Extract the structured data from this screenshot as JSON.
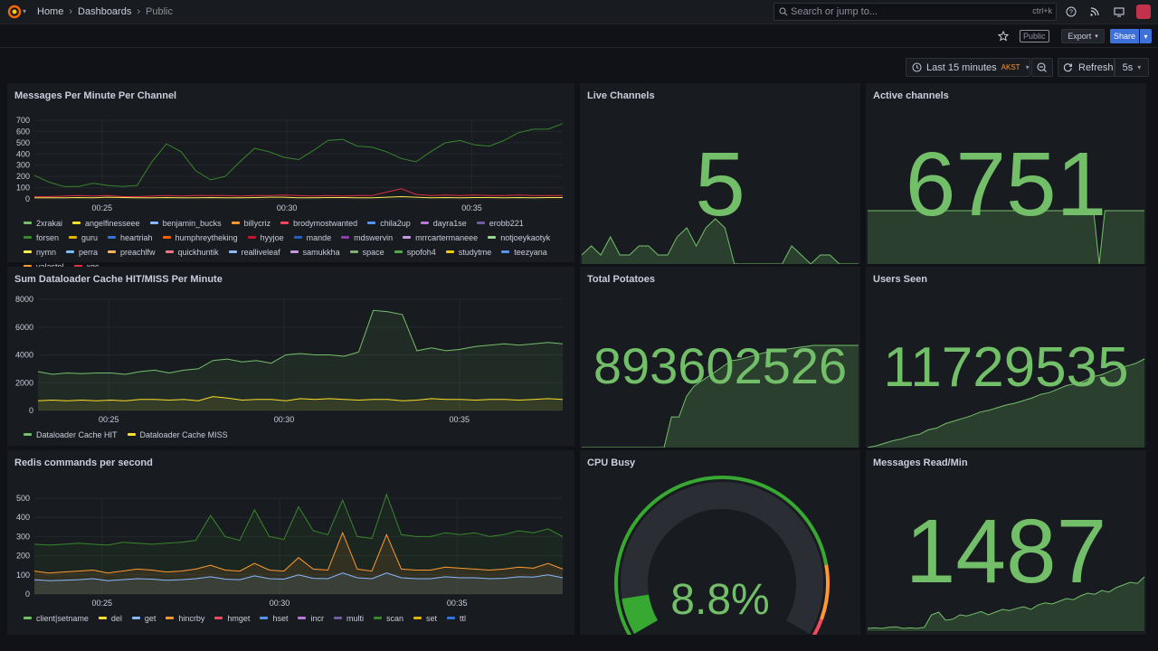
{
  "breadcrumb": {
    "home": "Home",
    "dashboards": "Dashboards",
    "current": "Public",
    "sep": "›"
  },
  "search": {
    "placeholder": "Search or jump to...",
    "shortcut": "ctrl+k"
  },
  "toolbar": {
    "public_badge": "Public",
    "export_label": "Export",
    "share_label": "Share"
  },
  "time": {
    "range_label": "Last 15 minutes",
    "timezone": "AKST",
    "refresh_label": "Refresh",
    "interval": "5s"
  },
  "colors": {
    "green": "#73bf69",
    "yellow": "#fade2a",
    "blue": "#5794f2",
    "orange": "#ff9830",
    "red": "#f2495c",
    "purple": "#b877d9"
  },
  "panels": {
    "messages_per_minute": {
      "title": "Messages Per Minute Per Channel",
      "legend": [
        {
          "name": "2xrakai",
          "color": "#73bf69"
        },
        {
          "name": "angelfinesseee",
          "color": "#fade2a"
        },
        {
          "name": "benjamin_bucks",
          "color": "#8ab8ff"
        },
        {
          "name": "billycriz",
          "color": "#ff9830"
        },
        {
          "name": "brodymostwanted",
          "color": "#f2495c"
        },
        {
          "name": "chila2up",
          "color": "#5794f2"
        },
        {
          "name": "dayra1se",
          "color": "#b877d9"
        },
        {
          "name": "erobb221",
          "color": "#705da0"
        },
        {
          "name": "forsen",
          "color": "#37872d"
        },
        {
          "name": "guru",
          "color": "#e0b400"
        },
        {
          "name": "heartriah",
          "color": "#3274d9"
        },
        {
          "name": "humphreytheking",
          "color": "#fa6400"
        },
        {
          "name": "hyyjoe",
          "color": "#c4162a"
        },
        {
          "name": "mande",
          "color": "#1f60c4"
        },
        {
          "name": "mdswervin",
          "color": "#8f3bb8"
        },
        {
          "name": "mrrcartermaneee",
          "color": "#ca95e5"
        },
        {
          "name": "notjoeykaotyk",
          "color": "#96d98d"
        },
        {
          "name": "nymn",
          "color": "#ffee52"
        },
        {
          "name": "perra",
          "color": "#73bfff"
        },
        {
          "name": "preachlfw",
          "color": "#ffb357"
        },
        {
          "name": "quickhuntik",
          "color": "#ff7383"
        },
        {
          "name": "realliveleaf",
          "color": "#8ab8ff"
        },
        {
          "name": "samukkha",
          "color": "#ca95e5"
        },
        {
          "name": "space",
          "color": "#7eb26d"
        },
        {
          "name": "spofoh4",
          "color": "#56a64b"
        },
        {
          "name": "studytme",
          "color": "#f2cc0c"
        },
        {
          "name": "teezyana",
          "color": "#5794f2"
        },
        {
          "name": "valastol",
          "color": "#ff9830"
        },
        {
          "name": "xqc",
          "color": "#e02f44"
        }
      ]
    },
    "dataloader": {
      "title": "Sum Dataloader Cache HIT/MISS Per Minute",
      "legend": [
        {
          "name": "Dataloader Cache HIT",
          "color": "#73bf69"
        },
        {
          "name": "Dataloader Cache MISS",
          "color": "#fade2a"
        }
      ]
    },
    "redis": {
      "title": "Redis commands per second",
      "legend": [
        {
          "name": "client|setname",
          "color": "#73bf69"
        },
        {
          "name": "del",
          "color": "#fade2a"
        },
        {
          "name": "get",
          "color": "#8ab8ff"
        },
        {
          "name": "hincrby",
          "color": "#ff9830"
        },
        {
          "name": "hmget",
          "color": "#f2495c"
        },
        {
          "name": "hset",
          "color": "#5794f2"
        },
        {
          "name": "incr",
          "color": "#b877d9"
        },
        {
          "name": "multi",
          "color": "#705da0"
        },
        {
          "name": "scan",
          "color": "#37872d"
        },
        {
          "name": "set",
          "color": "#e0b400"
        },
        {
          "name": "ttl",
          "color": "#3274d9"
        }
      ]
    },
    "live_channels": {
      "title": "Live Channels",
      "value": "5",
      "spark": [
        1,
        2,
        1,
        3,
        1,
        1,
        2,
        2,
        1,
        1,
        3,
        4,
        2,
        4,
        5,
        4,
        0,
        0,
        0,
        0,
        0,
        0,
        2,
        1,
        0,
        1,
        1,
        0,
        0,
        0
      ]
    },
    "active_channels": {
      "title": "Active channels",
      "value": "6751",
      "spark": [
        1,
        1,
        1,
        1,
        1,
        1,
        1,
        1,
        1,
        1,
        1,
        1,
        1,
        1,
        1,
        1,
        1,
        1,
        1,
        1,
        1,
        1,
        1,
        1,
        1,
        1,
        1,
        1,
        1,
        1,
        1,
        1,
        1,
        1,
        1,
        1,
        1,
        1,
        1,
        1,
        1,
        0,
        1,
        1,
        1,
        1,
        1,
        1,
        1,
        1
      ]
    },
    "total_potatoes": {
      "title": "Total Potatoes",
      "value": "893602526",
      "spark": [
        0,
        0,
        0,
        0,
        0,
        0,
        0,
        0,
        0,
        0,
        0,
        0,
        0.3,
        0.3,
        0.5,
        0.6,
        0.65,
        0.7,
        0.75,
        0.8,
        0.85,
        0.86,
        0.88,
        0.9,
        0.92,
        0.94,
        0.95,
        0.96,
        0.97,
        0.98,
        0.99,
        1,
        1,
        1,
        1,
        1,
        1,
        1
      ]
    },
    "users_seen": {
      "title": "Users Seen",
      "value": "11729535",
      "spark": [
        0,
        0.02,
        0.05,
        0.08,
        0.1,
        0.13,
        0.15,
        0.2,
        0.22,
        0.27,
        0.3,
        0.33,
        0.36,
        0.4,
        0.42,
        0.45,
        0.48,
        0.5,
        0.53,
        0.56,
        0.6,
        0.62,
        0.66,
        0.7,
        0.72,
        0.75,
        0.8,
        0.82,
        0.86,
        0.9,
        0.92,
        0.95,
        1
      ]
    },
    "cpu_busy": {
      "title": "CPU Busy",
      "value": "8.8%",
      "percent": 8.8
    },
    "messages_read": {
      "title": "Messages Read/Min",
      "value": "1487",
      "spark": [
        0.05,
        0.06,
        0.05,
        0.07,
        0.08,
        0.05,
        0.06,
        0.05,
        0.07,
        0.3,
        0.35,
        0.2,
        0.22,
        0.3,
        0.28,
        0.32,
        0.36,
        0.3,
        0.35,
        0.4,
        0.38,
        0.42,
        0.45,
        0.4,
        0.48,
        0.52,
        0.5,
        0.55,
        0.6,
        0.58,
        0.65,
        0.7,
        0.68,
        0.75,
        0.72,
        0.8,
        0.85,
        0.9,
        0.88,
        1
      ]
    }
  },
  "chart_data": [
    {
      "type": "line",
      "title": "Messages Per Minute Per Channel",
      "x_ticks": [
        "00:25",
        "00:30",
        "00:35"
      ],
      "y_ticks": [
        "0",
        "100",
        "200",
        "300",
        "400",
        "500",
        "600",
        "700"
      ],
      "ylim": [
        0,
        700
      ],
      "series": [
        {
          "name": "forsen",
          "values": [
            210,
            150,
            110,
            110,
            140,
            120,
            110,
            120,
            330,
            490,
            420,
            250,
            170,
            200,
            330,
            450,
            420,
            370,
            350,
            430,
            520,
            530,
            470,
            460,
            420,
            360,
            330,
            420,
            500,
            520,
            480,
            470,
            520,
            590,
            620,
            620,
            670
          ]
        },
        {
          "name": "xqc",
          "values": [
            20,
            20,
            25,
            30,
            25,
            30,
            20,
            20,
            25,
            30,
            25,
            30,
            30,
            30,
            25,
            30,
            30,
            35,
            30,
            25,
            30,
            25,
            30,
            30,
            60,
            90,
            40,
            30,
            35,
            30,
            35,
            30,
            30,
            35,
            30,
            30,
            30
          ]
        },
        {
          "name": "nymn",
          "values": [
            10,
            10,
            10,
            12,
            10,
            15,
            12,
            10,
            10,
            12,
            10,
            10,
            12,
            10,
            10,
            12,
            15,
            15,
            10,
            10,
            12,
            12,
            10,
            10,
            15,
            20,
            15,
            10,
            12,
            10,
            12,
            12,
            10,
            12,
            10,
            12,
            12
          ]
        }
      ]
    },
    {
      "type": "area",
      "title": "Sum Dataloader Cache HIT/MISS Per Minute",
      "x_ticks": [
        "00:25",
        "00:30",
        "00:35"
      ],
      "y_ticks": [
        "0",
        "2000",
        "4000",
        "6000",
        "8000"
      ],
      "ylim": [
        0,
        8000
      ],
      "series": [
        {
          "name": "Dataloader Cache HIT",
          "values": [
            2800,
            2600,
            2700,
            2650,
            2700,
            2700,
            2600,
            2800,
            2900,
            2700,
            2900,
            3000,
            3600,
            3700,
            3500,
            3600,
            3400,
            4000,
            4100,
            4000,
            4000,
            3900,
            4200,
            7200,
            7100,
            6900,
            4300,
            4500,
            4300,
            4400,
            4600,
            4700,
            4800,
            4700,
            4800,
            4900,
            4800
          ]
        },
        {
          "name": "Dataloader Cache MISS",
          "values": [
            700,
            750,
            700,
            750,
            700,
            750,
            700,
            800,
            800,
            750,
            800,
            700,
            1000,
            900,
            750,
            800,
            800,
            700,
            850,
            800,
            850,
            800,
            750,
            800,
            800,
            700,
            750,
            850,
            800,
            800,
            750,
            800,
            800,
            750,
            800,
            850,
            800
          ]
        }
      ]
    },
    {
      "type": "area",
      "title": "Redis commands per second",
      "x_ticks": [
        "00:25",
        "00:30",
        "00:35"
      ],
      "y_ticks": [
        "0",
        "100",
        "200",
        "300",
        "400",
        "500"
      ],
      "ylim": [
        0,
        500
      ],
      "series": [
        {
          "name": "scan",
          "values": [
            260,
            255,
            260,
            265,
            260,
            255,
            270,
            265,
            260,
            265,
            270,
            280,
            410,
            300,
            280,
            440,
            300,
            285,
            455,
            330,
            310,
            490,
            300,
            290,
            520,
            310,
            300,
            300,
            320,
            310,
            320,
            300,
            310,
            330,
            320,
            340,
            300
          ]
        },
        {
          "name": "hincrby",
          "values": [
            120,
            110,
            115,
            120,
            125,
            110,
            120,
            130,
            125,
            115,
            120,
            130,
            150,
            125,
            120,
            160,
            125,
            120,
            190,
            130,
            125,
            320,
            130,
            120,
            310,
            130,
            125,
            125,
            140,
            135,
            130,
            125,
            130,
            140,
            135,
            160,
            130
          ]
        },
        {
          "name": "get",
          "values": [
            75,
            70,
            72,
            75,
            80,
            70,
            75,
            80,
            78,
            72,
            75,
            80,
            90,
            78,
            75,
            95,
            80,
            78,
            100,
            82,
            80,
            110,
            85,
            80,
            110,
            85,
            80,
            80,
            90,
            85,
            85,
            80,
            82,
            90,
            88,
            100,
            85
          ]
        }
      ]
    }
  ]
}
